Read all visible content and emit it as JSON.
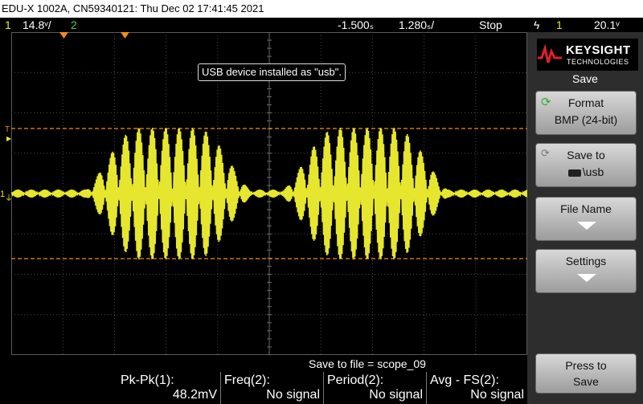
{
  "window": {
    "title": "EDU-X 1002A, CN59340121: Thu Dec 02 17:41:45 2021"
  },
  "status": {
    "ch1_num": "1",
    "ch1_scale": "14.8ᵛ/",
    "ch2_num": "2",
    "time_offset": "-1.500ₛ",
    "time_scale": "1.280ₛ/",
    "run_state": "Stop",
    "trigger_slope": "ϟ",
    "trigger_ch": "1",
    "trigger_level": "20.1ᵛ"
  },
  "markers": {
    "trigger_label": "T",
    "ch1_label": "1"
  },
  "message": "USB device installed as \"usb\".",
  "brand": {
    "name": "KEYSIGHT",
    "sub": "TECHNOLOGIES"
  },
  "menu": {
    "title": "Save",
    "keys": [
      {
        "l1": "Format",
        "l2": "BMP (24-bit)"
      },
      {
        "l1": "Save to",
        "l2": "\\usb"
      },
      {
        "l1": "File Name",
        "l2": ""
      },
      {
        "l1": "Settings",
        "l2": ""
      }
    ],
    "press": {
      "l1": "Press to",
      "l2": "Save"
    }
  },
  "save_file": {
    "label": "Save to file =",
    "value": "scope_09"
  },
  "measurements": [
    {
      "label": "Pk-Pk(1):",
      "value": "48.2mV"
    },
    {
      "label": "Freq(2):",
      "value": "No signal"
    },
    {
      "label": "Period(2):",
      "value": "No signal"
    },
    {
      "label": "Avg - FS(2):",
      "value": "No signal"
    }
  ],
  "colors": {
    "ch1": "#e6e62e",
    "ch2": "#4fd14f",
    "marker": "#f08c1e"
  }
}
